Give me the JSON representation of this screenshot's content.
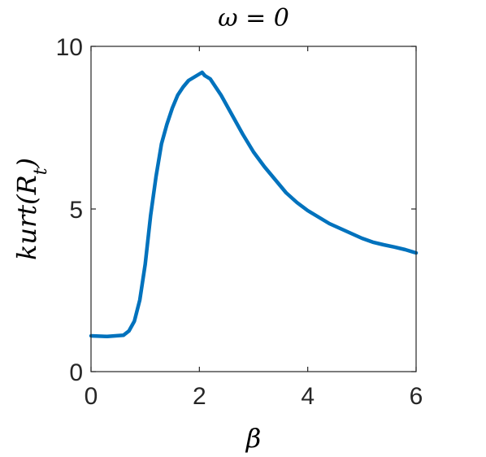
{
  "chart_data": {
    "type": "line",
    "title": "ω = 0",
    "xlabel": "β",
    "ylabel": "kurt(R_t)",
    "xlim": [
      0,
      6
    ],
    "ylim": [
      0,
      10
    ],
    "xticks": [
      0,
      2,
      4,
      6
    ],
    "xtick_labels": [
      "0",
      "2",
      "4",
      "6"
    ],
    "yticks": [
      0,
      5,
      10
    ],
    "ytick_labels": [
      "0",
      "5",
      "10"
    ],
    "grid": false,
    "legend": "none",
    "series": [
      {
        "color": "#0072BD",
        "x": [
          0,
          0.3,
          0.6,
          0.7,
          0.8,
          0.9,
          1.0,
          1.1,
          1.2,
          1.3,
          1.4,
          1.5,
          1.6,
          1.7,
          1.8,
          1.9,
          2.0,
          2.05,
          2.1,
          2.2,
          2.3,
          2.4,
          2.5,
          2.6,
          2.8,
          3.0,
          3.2,
          3.4,
          3.6,
          3.8,
          4.0,
          4.2,
          4.4,
          4.6,
          4.8,
          5.0,
          5.2,
          5.4,
          5.6,
          5.8,
          6.0
        ],
        "y": [
          1.1,
          1.08,
          1.12,
          1.25,
          1.55,
          2.2,
          3.3,
          4.8,
          6.0,
          7.0,
          7.6,
          8.1,
          8.5,
          8.75,
          8.95,
          9.05,
          9.15,
          9.2,
          9.1,
          9.0,
          8.75,
          8.5,
          8.2,
          7.9,
          7.3,
          6.75,
          6.3,
          5.9,
          5.5,
          5.2,
          4.95,
          4.75,
          4.55,
          4.4,
          4.25,
          4.1,
          3.98,
          3.9,
          3.83,
          3.75,
          3.65
        ]
      }
    ]
  }
}
